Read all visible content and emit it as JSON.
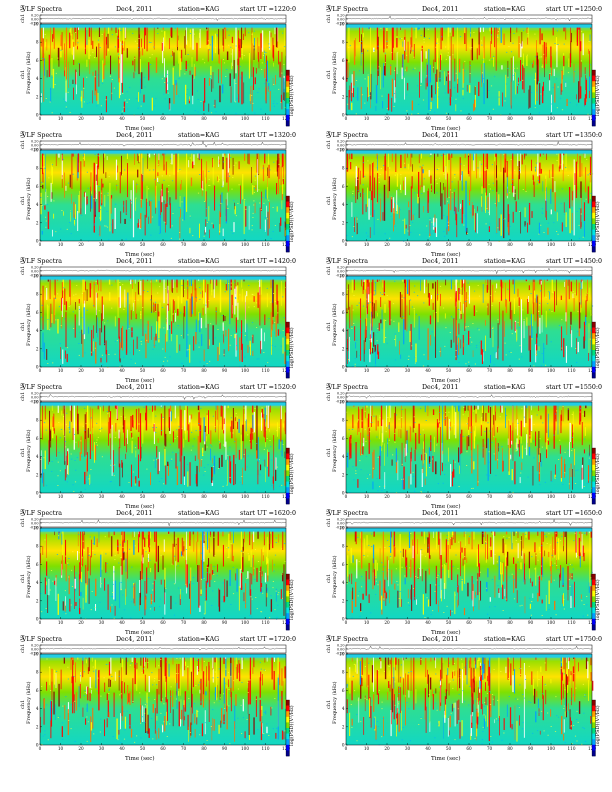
{
  "chart_data": {
    "type": "heatmap",
    "title_parts": {
      "product": "VLF Spectra",
      "date": "Dec4, 2011",
      "station": "station=KAG",
      "start_label": "start UT ="
    },
    "xlabel": "Time (sec)",
    "ylabel_top": "ch1 (V)",
    "ylabel_main_prefix": "ch1",
    "ylabel_main": "Frequency (kHz)",
    "colorbar_label": "log(PSD)(V²/Hz)",
    "xlim": [
      0,
      120
    ],
    "xticks": [
      "0",
      "10",
      "20",
      "30",
      "40",
      "50",
      "60",
      "70",
      "80",
      "90",
      "100",
      "110",
      "120"
    ],
    "ylim": [
      0,
      10
    ],
    "yticks": [
      "0",
      "2",
      "4",
      "6",
      "8",
      "10"
    ],
    "waveform_ticks": [
      "0.20",
      "0.00",
      "-0.20"
    ],
    "colorscale": [
      "#00008b",
      "#0000ff",
      "#00a0ff",
      "#00e5e5",
      "#00e080",
      "#7ee000",
      "#ffff00",
      "#ffa000",
      "#ff0000",
      "#8b0000"
    ],
    "panels": [
      {
        "start_ut": "1220:0"
      },
      {
        "start_ut": "1250:0"
      },
      {
        "start_ut": "1320:0"
      },
      {
        "start_ut": "1350:0"
      },
      {
        "start_ut": "1420:0"
      },
      {
        "start_ut": "1450:0"
      },
      {
        "start_ut": "1520:0"
      },
      {
        "start_ut": "1550:0"
      },
      {
        "start_ut": "1620:0"
      },
      {
        "start_ut": "1650:0"
      },
      {
        "start_ut": "1720:0"
      },
      {
        "start_ut": "1750:0"
      }
    ]
  }
}
